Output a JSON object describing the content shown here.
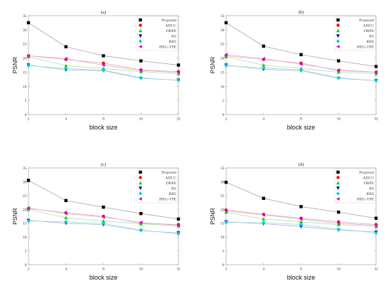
{
  "chart_data": [
    {
      "type": "line",
      "title": "(a)",
      "xlabel": "block size",
      "ylabel": "PSNR",
      "categories": [
        "2",
        "4",
        "8",
        "16",
        "32"
      ],
      "ylim": [
        0,
        35
      ],
      "yticks": [
        0,
        5,
        10,
        15,
        20,
        25,
        30,
        35
      ],
      "legend": "top-right",
      "grid": false,
      "series": [
        {
          "name": "Proposed",
          "values": [
            32.5,
            24,
            20.8,
            19,
            17.5
          ]
        },
        {
          "name": "ADCC",
          "values": [
            20.8,
            19.5,
            18.2,
            15.8,
            15.2
          ]
        },
        {
          "name": "DRPE",
          "values": [
            20.5,
            17.3,
            16.3,
            15.2,
            14.5
          ]
        },
        {
          "name": "RS",
          "values": [
            17.5,
            15.8,
            15.5,
            12.8,
            12.2
          ]
        },
        {
          "name": "RBS",
          "values": [
            17.3,
            16.3,
            15.7,
            13,
            12.1
          ]
        },
        {
          "name": "JPEG-TPE",
          "values": [
            20.8,
            19.8,
            17.5,
            15.6,
            14.9
          ]
        }
      ]
    },
    {
      "type": "line",
      "title": "(b)",
      "xlabel": "block size",
      "ylabel": "PSNR",
      "categories": [
        "2",
        "4",
        "8",
        "16",
        "32"
      ],
      "ylim": [
        0,
        35
      ],
      "yticks": [
        0,
        5,
        10,
        15,
        20,
        25,
        30,
        35
      ],
      "legend": "top-right",
      "grid": false,
      "series": [
        {
          "name": "Proposed",
          "values": [
            32.5,
            24.2,
            21.2,
            19,
            17
          ]
        },
        {
          "name": "ADCC",
          "values": [
            20.8,
            19.5,
            18.2,
            15.5,
            15
          ]
        },
        {
          "name": "DRPE",
          "values": [
            20.5,
            17.5,
            16.3,
            15,
            14.5
          ]
        },
        {
          "name": "RS",
          "values": [
            17.5,
            16,
            15.5,
            12.8,
            12
          ]
        },
        {
          "name": "RBS",
          "values": [
            17.3,
            16.5,
            15.8,
            13,
            12
          ]
        },
        {
          "name": "JPEG-TPE",
          "values": [
            21.2,
            19.8,
            17.8,
            15.8,
            15
          ]
        }
      ]
    },
    {
      "type": "line",
      "title": "(c)",
      "xlabel": "block size",
      "ylabel": "PSNR",
      "categories": [
        "2",
        "4",
        "8",
        "16",
        "32"
      ],
      "ylim": [
        0,
        35
      ],
      "yticks": [
        0,
        5,
        10,
        15,
        20,
        25,
        30,
        35
      ],
      "legend": "top-right",
      "grid": false,
      "series": [
        {
          "name": "Proposed",
          "values": [
            30.5,
            23.2,
            20.8,
            18.5,
            16.5
          ]
        },
        {
          "name": "ADCC",
          "values": [
            20.3,
            18.8,
            17.5,
            15,
            14.5
          ]
        },
        {
          "name": "DRPE",
          "values": [
            20,
            17,
            15.8,
            14.8,
            14
          ]
        },
        {
          "name": "RS",
          "values": [
            16,
            15,
            14.5,
            12.3,
            11.5
          ]
        },
        {
          "name": "RBS",
          "values": [
            15.8,
            15.5,
            15,
            12.5,
            11.2
          ]
        },
        {
          "name": "JPEG-TPE",
          "values": [
            20.5,
            18.5,
            17.2,
            15.3,
            14.2
          ]
        }
      ]
    },
    {
      "type": "line",
      "title": "(d)",
      "xlabel": "block size",
      "ylabel": "PSNR",
      "categories": [
        "2",
        "4",
        "8",
        "16",
        "32"
      ],
      "ylim": [
        0,
        35
      ],
      "yticks": [
        0,
        5,
        10,
        15,
        20,
        25,
        30,
        35
      ],
      "legend": "top-right",
      "grid": false,
      "series": [
        {
          "name": "Proposed",
          "values": [
            29.8,
            24,
            21,
            19,
            16.8
          ]
        },
        {
          "name": "ADCC",
          "values": [
            19.8,
            18.2,
            16.8,
            15.5,
            14.5
          ]
        },
        {
          "name": "DRPE",
          "values": [
            19,
            16.5,
            15.5,
            14.5,
            13.8
          ]
        },
        {
          "name": "RS",
          "values": [
            15.5,
            14.8,
            13.8,
            12.5,
            11.8
          ]
        },
        {
          "name": "RBS",
          "values": [
            15.3,
            15.2,
            14.5,
            12.8,
            11.5
          ]
        },
        {
          "name": "JPEG-TPE",
          "values": [
            19.5,
            18,
            16.5,
            15,
            14.2
          ]
        }
      ]
    }
  ],
  "series_styles": [
    {
      "color": "#000000",
      "line_color": "#9a9a9a",
      "marker": "square"
    },
    {
      "color": "#ff0000",
      "line_color": "#e9a0a0",
      "marker": "circle"
    },
    {
      "color": "#00d800",
      "line_color": "#9fdc9f",
      "marker": "triangle-up"
    },
    {
      "color": "#0000cc",
      "line_color": "#9fa8d8",
      "marker": "triangle-down"
    },
    {
      "color": "#00d0d0",
      "line_color": "#8fd8d8",
      "marker": "diamond"
    },
    {
      "color": "#d800d8",
      "line_color": "#dca0dc",
      "marker": "triangle-left"
    }
  ]
}
